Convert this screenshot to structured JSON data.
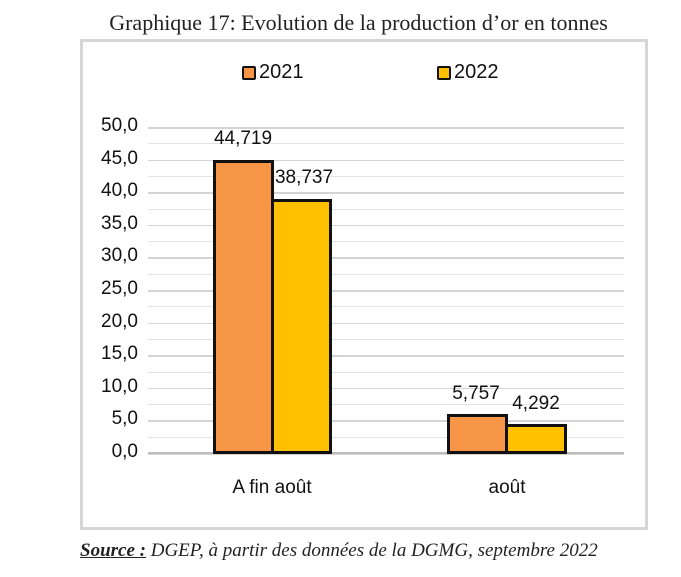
{
  "title": "Graphique 17: Evolution de la production d’or en tonnes",
  "legend": [
    {
      "label": "2021",
      "color": "#F79646"
    },
    {
      "label": "2022",
      "color": "#FFC000"
    }
  ],
  "y_ticks": [
    "50,0",
    "45,0",
    "40,0",
    "35,0",
    "30,0",
    "25,0",
    "20,0",
    "15,0",
    "10,0",
    "5,0",
    "0,0"
  ],
  "categories": [
    "A fin août",
    "août"
  ],
  "data_labels": {
    "a_fin_aout_2021": "44,719",
    "a_fin_aout_2022": "38,737",
    "aout_2021": "5,757",
    "aout_2022": "4,292"
  },
  "source": {
    "label": "Source :",
    "text": " DGEP, à partir des données de la DGMG, septembre 2022"
  },
  "chart_data": {
    "type": "bar",
    "title": "Graphique 17: Evolution de la production d’or en tonnes",
    "categories": [
      "A fin août",
      "août"
    ],
    "series": [
      {
        "name": "2021",
        "color": "#F79646",
        "values": [
          44.719,
          5.757
        ]
      },
      {
        "name": "2022",
        "color": "#FFC000",
        "values": [
          38.737,
          4.292
        ]
      }
    ],
    "xlabel": "",
    "ylabel": "",
    "ylim": [
      0,
      50
    ],
    "y_tick_step": 5,
    "grid": true,
    "legend_position": "top",
    "data_labels": true,
    "source": "Source : DGEP, à partir des données de la DGMG, septembre 2022"
  }
}
